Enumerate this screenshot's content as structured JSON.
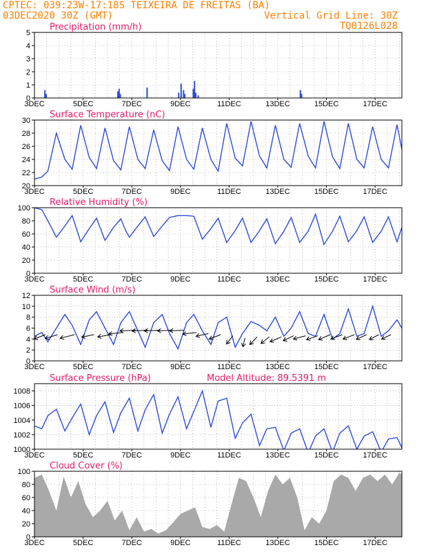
{
  "header": {
    "left_line1": "CPTEC:  039:23W-17:18S  TEIXEIRA DE FREITAS (BA)",
    "left_line2": "03DEC2020 30Z (GMT)",
    "right_line1": "Vertical Grid Line: 30Z",
    "right_line2": "TQ0126L028"
  },
  "colors": {
    "header": "#ff7f00",
    "panel_title": "#e8196a",
    "series": "#2e4bd8",
    "cloud": "#a9a9a9",
    "arrows": "#000000"
  },
  "x_tick_labels": [
    "3DEC",
    "5DEC",
    "7DEC",
    "9DEC",
    "11DEC",
    "13DEC",
    "15DEC",
    "17DEC"
  ],
  "chart_data": [
    {
      "id": "precip",
      "type": "bar",
      "title": "Precipitation (mm/h)",
      "x_range_days": [
        3.0,
        18.1
      ],
      "ylim": [
        0,
        5
      ],
      "yticks": [
        "0",
        "1",
        "2",
        "3",
        "4",
        "5"
      ],
      "x": [
        3.4,
        3.45,
        6.4,
        6.45,
        6.5,
        7.6,
        8.9,
        9.0,
        9.1,
        9.15,
        9.5,
        9.55,
        9.6,
        9.7,
        13.9,
        13.95
      ],
      "values": [
        0.6,
        0.3,
        0.5,
        0.7,
        0.3,
        0.8,
        0.4,
        1.1,
        0.6,
        0.3,
        0.7,
        1.3,
        0.4,
        0.2,
        0.6,
        0.3
      ]
    },
    {
      "id": "temp",
      "type": "line",
      "title": "Surface Temperature (nC)",
      "x_range_days": [
        3.0,
        18.1
      ],
      "ylim": [
        20,
        30
      ],
      "yticks": [
        "20",
        "22",
        "24",
        "26",
        "28",
        "30"
      ],
      "x": [
        3.0,
        3.3,
        3.55,
        3.9,
        4.25,
        4.55,
        4.9,
        5.25,
        5.55,
        5.9,
        6.25,
        6.55,
        6.9,
        7.25,
        7.55,
        7.9,
        8.25,
        8.55,
        8.9,
        9.25,
        9.55,
        9.9,
        10.25,
        10.55,
        10.9,
        11.25,
        11.55,
        11.9,
        12.25,
        12.55,
        12.9,
        13.25,
        13.55,
        13.9,
        14.25,
        14.55,
        14.9,
        15.25,
        15.55,
        15.9,
        16.25,
        16.55,
        16.9,
        17.25,
        17.55,
        17.9,
        18.1
      ],
      "values": [
        21.0,
        21.3,
        22.2,
        28.0,
        24.0,
        22.5,
        29.2,
        24.3,
        22.6,
        28.8,
        23.8,
        22.4,
        29.0,
        24.0,
        22.6,
        28.5,
        23.8,
        22.3,
        29.0,
        24.0,
        22.5,
        28.8,
        24.0,
        22.2,
        29.5,
        24.2,
        23.0,
        29.8,
        24.5,
        22.7,
        29.2,
        24.0,
        22.8,
        29.5,
        24.5,
        22.7,
        29.8,
        24.4,
        22.6,
        29.5,
        24.0,
        22.7,
        29.0,
        24.0,
        22.7,
        29.3,
        25.5
      ]
    },
    {
      "id": "rh",
      "type": "line",
      "title": "Relative Humidity (%)",
      "x_range_days": [
        3.0,
        18.1
      ],
      "ylim": [
        0,
        100
      ],
      "yticks": [
        "0",
        "20",
        "40",
        "60",
        "80",
        "100"
      ],
      "x": [
        3.0,
        3.3,
        3.55,
        3.9,
        4.25,
        4.55,
        4.9,
        5.25,
        5.55,
        5.9,
        6.25,
        6.55,
        6.75,
        6.9,
        7.25,
        7.55,
        7.9,
        8.25,
        8.55,
        8.9,
        9.25,
        9.55,
        9.9,
        10.25,
        10.55,
        10.9,
        11.25,
        11.55,
        11.9,
        12.25,
        12.55,
        12.9,
        13.25,
        13.55,
        13.9,
        14.25,
        14.55,
        14.9,
        15.25,
        15.55,
        15.9,
        16.25,
        16.55,
        16.9,
        17.25,
        17.55,
        17.9,
        18.1
      ],
      "values": [
        100,
        97,
        80,
        55,
        72,
        88,
        48,
        68,
        84,
        50,
        70,
        83,
        65,
        55,
        72,
        86,
        56,
        72,
        85,
        88,
        88,
        87,
        52,
        68,
        84,
        47,
        65,
        84,
        47,
        65,
        83,
        45,
        64,
        85,
        47,
        64,
        90,
        44,
        64,
        87,
        48,
        65,
        86,
        47,
        64,
        86,
        48,
        70
      ]
    },
    {
      "id": "wind",
      "type": "line",
      "title": "Surface Wind (m/s)",
      "x_range_days": [
        3.0,
        18.1
      ],
      "ylim": [
        0,
        12
      ],
      "yticks": [
        "0",
        "2",
        "4",
        "6",
        "8",
        "10",
        "12"
      ],
      "x": [
        3.0,
        3.3,
        3.55,
        3.9,
        4.25,
        4.55,
        4.9,
        5.25,
        5.55,
        5.9,
        6.25,
        6.55,
        6.9,
        7.25,
        7.55,
        7.9,
        8.25,
        8.55,
        8.9,
        9.25,
        9.55,
        9.9,
        10.25,
        10.55,
        10.9,
        11.25,
        11.55,
        11.9,
        12.25,
        12.55,
        12.9,
        13.25,
        13.55,
        13.9,
        14.25,
        14.55,
        14.9,
        15.25,
        15.55,
        15.9,
        16.25,
        16.55,
        16.9,
        17.25,
        17.55,
        17.9,
        18.1
      ],
      "values": [
        4.5,
        5.2,
        3.5,
        6.0,
        8.5,
        6.5,
        3.0,
        7.5,
        9.0,
        6.0,
        3.0,
        7.0,
        9.0,
        5.5,
        2.5,
        7.0,
        8.5,
        5.0,
        2.2,
        7.0,
        8.5,
        5.5,
        3.0,
        7.0,
        8.0,
        2.5,
        5.0,
        7.2,
        6.5,
        5.5,
        8.0,
        4.5,
        6.0,
        9.0,
        5.0,
        4.5,
        8.5,
        4.0,
        5.0,
        9.5,
        4.5,
        5.0,
        10.0,
        4.5,
        5.5,
        7.5,
        6.0
      ],
      "arrows_x": [
        3.45,
        3.95,
        4.65,
        5.45,
        6.15,
        6.65,
        7.15,
        7.65,
        8.15,
        8.65,
        9.15,
        9.65,
        10.15,
        10.65,
        11.15,
        11.65,
        12.15,
        12.65,
        13.15,
        13.65,
        14.15,
        14.65,
        15.15,
        15.65,
        16.15,
        16.65,
        17.15,
        17.65
      ],
      "arrows_y": [
        4.8,
        4.8,
        4.8,
        4.8,
        4.8,
        5.2,
        5.6,
        5.6,
        5.6,
        5.6,
        5.6,
        5.2,
        5.0,
        4.8,
        4.6,
        4.2,
        4.4,
        4.4,
        4.4,
        4.6,
        4.6,
        4.6,
        4.8,
        4.8,
        4.8,
        4.8,
        4.8,
        4.8
      ],
      "arrows_dx": [
        -0.55,
        -0.6,
        -0.7,
        -0.6,
        -0.65,
        -0.7,
        -0.75,
        -0.75,
        -0.75,
        -0.7,
        -0.7,
        -0.65,
        -0.6,
        -0.55,
        -0.3,
        -0.1,
        -0.35,
        -0.4,
        -0.55,
        -0.5,
        -0.6,
        -0.55,
        -0.55,
        -0.55,
        -0.55,
        -0.5,
        -0.45,
        -0.45
      ],
      "arrows_dy": [
        -1.6,
        -1.4,
        -1.3,
        -0.9,
        -0.8,
        -0.5,
        -0.2,
        -0.2,
        -0.2,
        -0.2,
        -0.2,
        -0.6,
        -1.0,
        -1.6,
        -3.0,
        -3.2,
        -2.8,
        -2.4,
        -1.8,
        -1.8,
        -1.2,
        -1.4,
        -1.8,
        -1.6,
        -1.6,
        -1.7,
        -1.8,
        -1.6
      ]
    },
    {
      "id": "pressure",
      "type": "line",
      "title": "Surface Pressure (hPa)",
      "subtitle": "Model Altitude: 89.5391 m",
      "x_range_days": [
        3.0,
        18.1
      ],
      "ylim": [
        1000,
        1009
      ],
      "yticks": [
        "1000",
        "1002",
        "1004",
        "1006",
        "1008"
      ],
      "x": [
        3.0,
        3.3,
        3.55,
        3.9,
        4.25,
        4.55,
        4.9,
        5.25,
        5.55,
        5.9,
        6.25,
        6.55,
        6.9,
        7.25,
        7.55,
        7.9,
        8.25,
        8.55,
        8.9,
        9.25,
        9.55,
        9.9,
        10.25,
        10.55,
        10.9,
        11.25,
        11.55,
        11.9,
        12.25,
        12.55,
        12.9,
        13.25,
        13.55,
        13.9,
        14.25,
        14.55,
        14.9,
        15.25,
        15.55,
        15.9,
        16.25,
        16.55,
        16.9,
        17.25,
        17.55,
        17.9,
        18.1
      ],
      "values": [
        1003.2,
        1002.8,
        1004.6,
        1005.5,
        1002.5,
        1004.3,
        1006.2,
        1002.0,
        1004.6,
        1006.5,
        1002.3,
        1005.0,
        1007.0,
        1002.5,
        1005.4,
        1007.5,
        1002.2,
        1004.8,
        1007.2,
        1002.8,
        1005.2,
        1008.0,
        1003.0,
        1006.6,
        1007.0,
        1001.5,
        1003.6,
        1004.8,
        1000.5,
        1002.8,
        1003.0,
        999.8,
        1002.2,
        1002.8,
        999.5,
        1001.8,
        1002.8,
        999.6,
        1002.2,
        1003.2,
        1000.0,
        1001.8,
        1002.4,
        999.6,
        1001.4,
        1001.6,
        1000.2
      ]
    },
    {
      "id": "cloud",
      "type": "area",
      "title": "Cloud Cover (%)",
      "x_range_days": [
        3.0,
        18.1
      ],
      "ylim": [
        0,
        100
      ],
      "yticks": [
        "0",
        "20",
        "40",
        "60",
        "80",
        "100"
      ],
      "x": [
        3.0,
        3.3,
        3.6,
        3.9,
        4.2,
        4.5,
        4.8,
        5.1,
        5.4,
        5.7,
        6.0,
        6.3,
        6.6,
        6.9,
        7.2,
        7.5,
        7.8,
        8.1,
        8.4,
        8.7,
        9.0,
        9.3,
        9.6,
        9.9,
        10.2,
        10.5,
        10.8,
        11.1,
        11.4,
        11.7,
        12.0,
        12.3,
        12.6,
        12.9,
        13.2,
        13.5,
        13.8,
        14.1,
        14.4,
        14.7,
        15.0,
        15.3,
        15.6,
        15.9,
        16.2,
        16.5,
        16.8,
        17.1,
        17.4,
        17.7,
        18.0,
        18.1
      ],
      "values": [
        90,
        95,
        70,
        40,
        92,
        60,
        85,
        50,
        30,
        40,
        55,
        25,
        40,
        10,
        30,
        8,
        12,
        5,
        10,
        22,
        35,
        40,
        45,
        15,
        12,
        18,
        8,
        50,
        90,
        85,
        60,
        30,
        70,
        95,
        80,
        90,
        60,
        10,
        30,
        20,
        40,
        85,
        95,
        90,
        70,
        90,
        95,
        85,
        95,
        80,
        98,
        95
      ]
    }
  ]
}
